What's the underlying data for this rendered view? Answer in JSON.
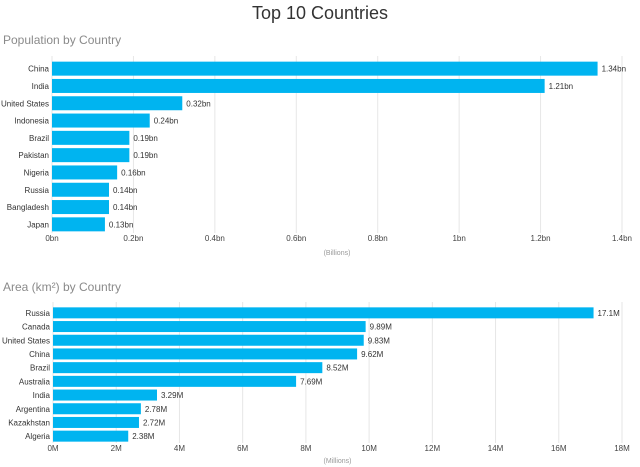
{
  "title": "Top 10 Countries",
  "bar_color": "#00b4f0",
  "grid_color": "#e6e6e6",
  "chart_data": [
    {
      "type": "bar",
      "orientation": "horizontal",
      "title": "Population by Country",
      "xlabel": "(Billions)",
      "categories": [
        "China",
        "India",
        "United States",
        "Indonesia",
        "Brazil",
        "Pakistan",
        "Nigeria",
        "Russia",
        "Bangladesh",
        "Japan"
      ],
      "values": [
        1.34,
        1.21,
        0.32,
        0.24,
        0.19,
        0.19,
        0.16,
        0.14,
        0.14,
        0.13
      ],
      "value_labels": [
        "1.34bn",
        "1.21bn",
        "0.32bn",
        "0.24bn",
        "0.19bn",
        "0.19bn",
        "0.16bn",
        "0.14bn",
        "0.14bn",
        "0.13bn"
      ],
      "xlim": [
        0,
        1.4
      ],
      "ticks": [
        0,
        0.2,
        0.4,
        0.6,
        0.8,
        1.0,
        1.2,
        1.4
      ],
      "tick_labels": [
        "0bn",
        "0.2bn",
        "0.4bn",
        "0.6bn",
        "0.8bn",
        "1bn",
        "1.2bn",
        "1.4bn"
      ],
      "grid": true
    },
    {
      "type": "bar",
      "orientation": "horizontal",
      "title": "Area (km²) by Country",
      "xlabel": "(Millions)",
      "categories": [
        "Russia",
        "Canada",
        "United States",
        "China",
        "Brazil",
        "Australia",
        "India",
        "Argentina",
        "Kazakhstan",
        "Algeria"
      ],
      "values": [
        17.1,
        9.89,
        9.83,
        9.62,
        8.52,
        7.69,
        3.29,
        2.78,
        2.72,
        2.38
      ],
      "value_labels": [
        "17.1M",
        "9.89M",
        "9.83M",
        "9.62M",
        "8.52M",
        "7.69M",
        "3.29M",
        "2.78M",
        "2.72M",
        "2.38M"
      ],
      "xlim": [
        0,
        18
      ],
      "ticks": [
        0,
        2,
        4,
        6,
        8,
        10,
        12,
        14,
        16,
        18
      ],
      "tick_labels": [
        "0M",
        "2M",
        "4M",
        "6M",
        "8M",
        "10M",
        "12M",
        "14M",
        "16M",
        "18M"
      ],
      "grid": true
    }
  ]
}
